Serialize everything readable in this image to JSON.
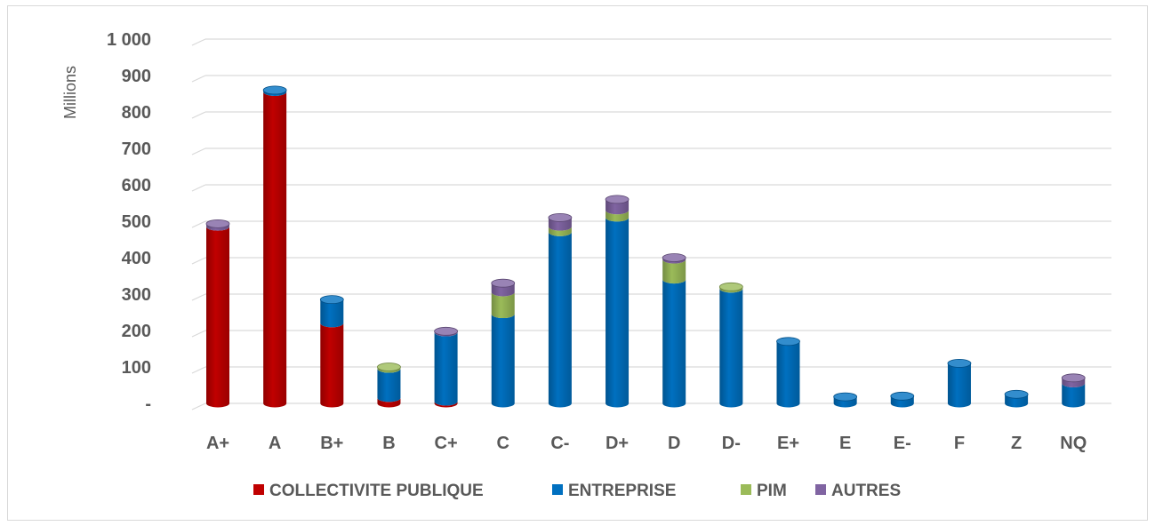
{
  "chart_data": {
    "type": "bar",
    "stacked": true,
    "title": "",
    "xlabel": "",
    "ylabel": "Millions",
    "ylim": [
      0,
      1000
    ],
    "yticks": [
      0,
      100,
      200,
      300,
      400,
      500,
      600,
      700,
      800,
      900,
      1000
    ],
    "ytick_labels": [
      "-",
      "100",
      "200",
      "300",
      "400",
      "500",
      "600",
      "700",
      "800",
      "900",
      "1 000"
    ],
    "grid": true,
    "legend_position": "bottom",
    "categories": [
      "A+",
      "A",
      "B+",
      "B",
      "C+",
      "C",
      "C-",
      "D+",
      "D",
      "D-",
      "E+",
      "E",
      "E-",
      "F",
      "Z",
      "NQ"
    ],
    "series": [
      {
        "name": "COLLECTIVITE PUBLIQUE",
        "color": "#c00000",
        "values": [
          485,
          855,
          220,
          15,
          5,
          0,
          0,
          0,
          0,
          0,
          0,
          0,
          0,
          0,
          0,
          0
        ]
      },
      {
        "name": "ENTREPRISE",
        "color": "#0070c0",
        "values": [
          0,
          5,
          65,
          80,
          190,
          245,
          470,
          510,
          340,
          315,
          170,
          18,
          20,
          110,
          25,
          55
        ]
      },
      {
        "name": "PIM",
        "color": "#9bbb59",
        "values": [
          0,
          0,
          0,
          5,
          0,
          60,
          15,
          20,
          55,
          5,
          0,
          0,
          0,
          0,
          0,
          0
        ]
      },
      {
        "name": "AUTRES",
        "color": "#8064a2",
        "values": [
          8,
          0,
          0,
          0,
          3,
          25,
          25,
          30,
          5,
          0,
          0,
          0,
          0,
          0,
          0,
          15
        ]
      }
    ]
  }
}
